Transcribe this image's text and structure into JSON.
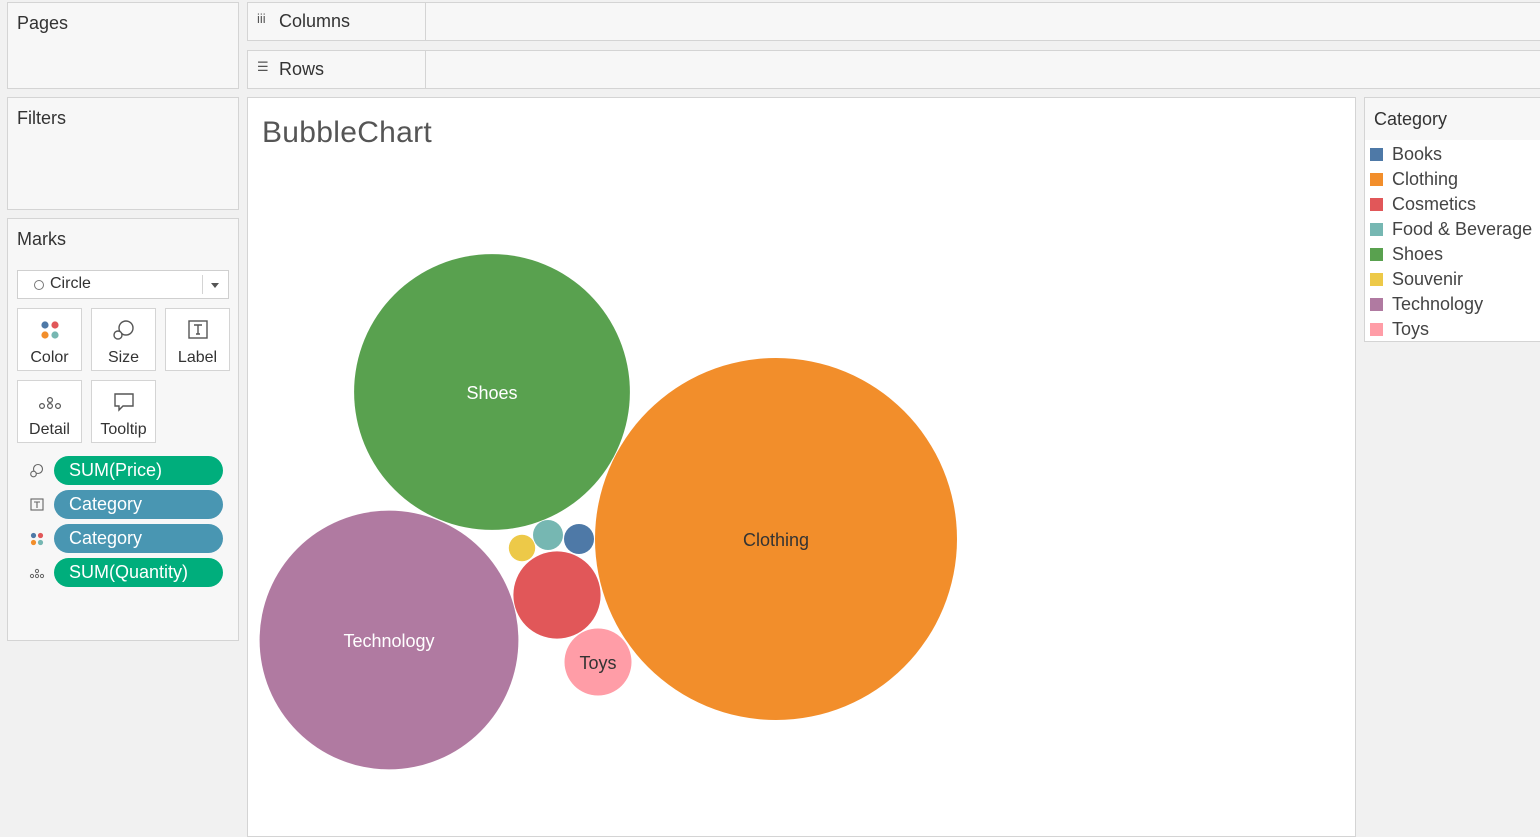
{
  "shelves": {
    "pages": "Pages",
    "filters": "Filters",
    "columns": "Columns",
    "rows": "Rows"
  },
  "marks": {
    "title": "Marks",
    "mark_type": "Circle",
    "buttons": [
      {
        "label": "Color",
        "icon": "color-icon"
      },
      {
        "label": "Size",
        "icon": "size-icon"
      },
      {
        "label": "Label",
        "icon": "label-icon"
      },
      {
        "label": "Detail",
        "icon": "detail-icon"
      },
      {
        "label": "Tooltip",
        "icon": "tooltip-icon"
      }
    ],
    "pills": [
      {
        "icon": "size-icon",
        "label": "SUM(Price)",
        "color": "#00ae7c"
      },
      {
        "icon": "label-icon",
        "label": "Category",
        "color": "#4996b2"
      },
      {
        "icon": "color-icon",
        "label": "Category",
        "color": "#4996b2"
      },
      {
        "icon": "detail-icon",
        "label": "SUM(Quantity)",
        "color": "#00ae7c"
      }
    ]
  },
  "viz": {
    "title": "BubbleChart"
  },
  "legend": {
    "title": "Category",
    "items": [
      {
        "label": "Books",
        "color": "#4e79a7"
      },
      {
        "label": "Clothing",
        "color": "#f28e2b"
      },
      {
        "label": "Cosmetics",
        "color": "#e15759"
      },
      {
        "label": "Food & Beverage",
        "color": "#76b7b2"
      },
      {
        "label": "Shoes",
        "color": "#59a14f"
      },
      {
        "label": "Souvenir",
        "color": "#edc948"
      },
      {
        "label": "Technology",
        "color": "#b07aa1"
      },
      {
        "label": "Toys",
        "color": "#ff9da7"
      }
    ]
  },
  "chart_data": {
    "type": "bubble",
    "title": "BubbleChart",
    "size_measure": "SUM(Price)",
    "color_field": "Category",
    "label_field": "Category",
    "bubbles": [
      {
        "category": "Clothing",
        "size": 131,
        "label": "Clothing",
        "color": "#f28e2b"
      },
      {
        "category": "Shoes",
        "size": 76,
        "label": "Shoes",
        "color": "#59a14f"
      },
      {
        "category": "Technology",
        "size": 67,
        "label": "Technology",
        "color": "#b07aa1"
      },
      {
        "category": "Cosmetics",
        "size": 7.6,
        "label": "",
        "color": "#e15759"
      },
      {
        "category": "Toys",
        "size": 4.5,
        "label": "Toys",
        "color": "#ff9da7"
      },
      {
        "category": "Food & Beverage",
        "size": 0.9,
        "label": "",
        "color": "#76b7b2"
      },
      {
        "category": "Books",
        "size": 0.9,
        "label": "",
        "color": "#4e79a7"
      },
      {
        "category": "Souvenir",
        "size": 0.7,
        "label": "",
        "color": "#edc948"
      }
    ],
    "label_colors": {
      "light": "#ffffff",
      "dark": "#333333"
    }
  }
}
